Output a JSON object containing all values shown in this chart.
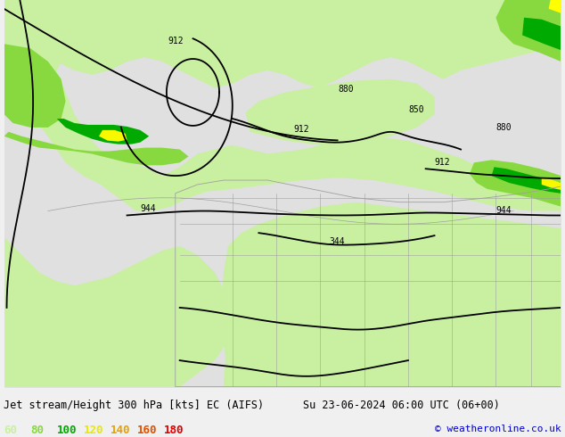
{
  "figsize": [
    6.34,
    4.9
  ],
  "dpi": 100,
  "title_line1": "Jet stream/Height 300 hPa [kts] EC (AIFS)",
  "title_line2": "Su 23-06-2024 06:00 UTC (06+00)",
  "copyright": "© weatheronline.co.uk",
  "legend_values": [
    "60",
    "80",
    "100",
    "120",
    "140",
    "160",
    "180"
  ],
  "legend_colors": [
    "#c8f0a0",
    "#88d840",
    "#00aa00",
    "#e8e800",
    "#e8a000",
    "#e05000",
    "#e00000"
  ],
  "bg_color": "#e8e8e8",
  "ocean_color": "#e0e0e0",
  "land_color": "#d8d8d8",
  "bottom_bar_color": "#f0f0f0",
  "text_color": "#000000",
  "map_light_green": "#c8f0a0",
  "map_mid_green": "#88d840",
  "map_dark_green": "#00aa00",
  "map_yellow": "#f8f800",
  "map_orange": "#f0a000",
  "contour_color": "#000000",
  "border_color": "#a0a0a0"
}
